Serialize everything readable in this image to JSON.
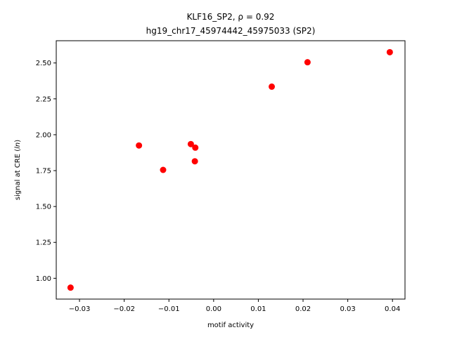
{
  "chart_data": {
    "type": "scatter",
    "title_line1": "KLF16_SP2, ρ = 0.92",
    "title_line2": "hg19_chr17_45974442_45975033 (SP2)",
    "xlabel": "motif activity",
    "ylabel_prefix": "signal at CRE (",
    "ylabel_italic": "ln",
    "ylabel_suffix": ")",
    "xlim": [
      -0.0352,
      0.0428
    ],
    "ylim": [
      0.855,
      2.655
    ],
    "xticks": [
      {
        "value": -0.03,
        "label": "−0.03"
      },
      {
        "value": -0.02,
        "label": "−0.02"
      },
      {
        "value": -0.01,
        "label": "−0.01"
      },
      {
        "value": 0.0,
        "label": "0.00"
      },
      {
        "value": 0.01,
        "label": "0.01"
      },
      {
        "value": 0.02,
        "label": "0.02"
      },
      {
        "value": 0.03,
        "label": "0.03"
      },
      {
        "value": 0.04,
        "label": "0.04"
      }
    ],
    "yticks": [
      {
        "value": 1.0,
        "label": "1.00"
      },
      {
        "value": 1.25,
        "label": "1.25"
      },
      {
        "value": 1.5,
        "label": "1.50"
      },
      {
        "value": 1.75,
        "label": "1.75"
      },
      {
        "value": 2.0,
        "label": "2.00"
      },
      {
        "value": 2.25,
        "label": "2.25"
      },
      {
        "value": 2.5,
        "label": "2.50"
      }
    ],
    "marker_color": "#ff0000",
    "grid": false,
    "points": [
      {
        "x": -0.032,
        "y": 0.935
      },
      {
        "x": -0.0167,
        "y": 1.925
      },
      {
        "x": -0.0113,
        "y": 1.755
      },
      {
        "x": -0.0051,
        "y": 1.935
      },
      {
        "x": -0.0041,
        "y": 1.91
      },
      {
        "x": -0.0042,
        "y": 1.815
      },
      {
        "x": 0.013,
        "y": 2.335
      },
      {
        "x": 0.021,
        "y": 2.505
      },
      {
        "x": 0.0394,
        "y": 2.575
      }
    ]
  }
}
